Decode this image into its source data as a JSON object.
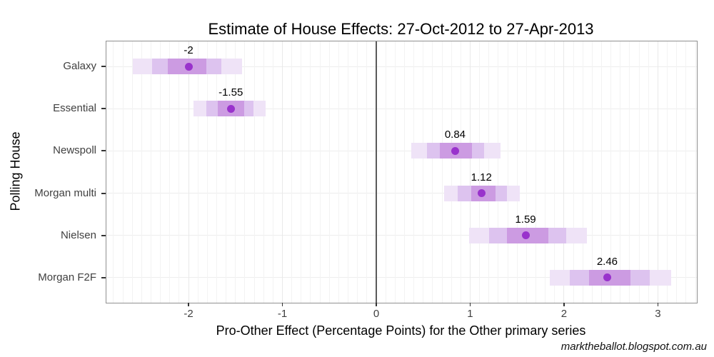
{
  "page": {
    "watermark": "marktheballot.blogspot.com.au"
  },
  "chart_data": {
    "type": "scatter",
    "title": "Estimate of House Effects: 27-Oct-2012 to 27-Apr-2013",
    "xlabel": "Pro-Other Effect (Percentage Points) for the Other primary series",
    "ylabel": "Polling House",
    "legend": "none",
    "grid": true,
    "categories": [
      "Galaxy",
      "Essential",
      "Newspoll",
      "Morgan multi",
      "Nielsen",
      "Morgan F2F"
    ],
    "points": [
      -2.0,
      -1.55,
      0.84,
      1.12,
      1.59,
      2.46
    ],
    "point_labels": [
      "-2",
      "-1.55",
      "0.84",
      "1.12",
      "1.59",
      "2.46"
    ],
    "intervals": {
      "inner": [
        [
          -2.22,
          -1.81
        ],
        [
          -1.69,
          -1.41
        ],
        [
          0.68,
          1.02
        ],
        [
          1.01,
          1.27
        ],
        [
          1.39,
          1.83
        ],
        [
          2.27,
          2.71
        ]
      ],
      "middle": [
        [
          -2.39,
          -1.65
        ],
        [
          -1.81,
          -1.31
        ],
        [
          0.54,
          1.15
        ],
        [
          0.87,
          1.39
        ],
        [
          1.2,
          2.02
        ],
        [
          2.06,
          2.91
        ]
      ],
      "outer": [
        [
          -2.59,
          -1.43
        ],
        [
          -1.95,
          -1.18
        ],
        [
          0.37,
          1.32
        ],
        [
          0.72,
          1.53
        ],
        [
          0.99,
          2.24
        ],
        [
          1.85,
          3.14
        ]
      ]
    },
    "xlim": [
      -2.875,
      3.415
    ],
    "xticks": [
      -2,
      -1,
      0,
      1,
      2,
      3
    ],
    "xtick_labels": [
      "-2",
      "-1",
      "0",
      "1",
      "2",
      "3"
    ],
    "minor_grid_step": 0.1,
    "zero_line_x": 0,
    "colors": {
      "point": "#9932CC",
      "band_inner": "#CC9BE2",
      "band_middle": "#DDC3EF",
      "band_outer": "#EFE3F7",
      "zero_line": "#5A5A5A",
      "panel_border": "#909090",
      "grid_minor": "#F3F3F3",
      "grid_major": "#E9E9E9",
      "grid_row": "#EDEDED"
    }
  }
}
